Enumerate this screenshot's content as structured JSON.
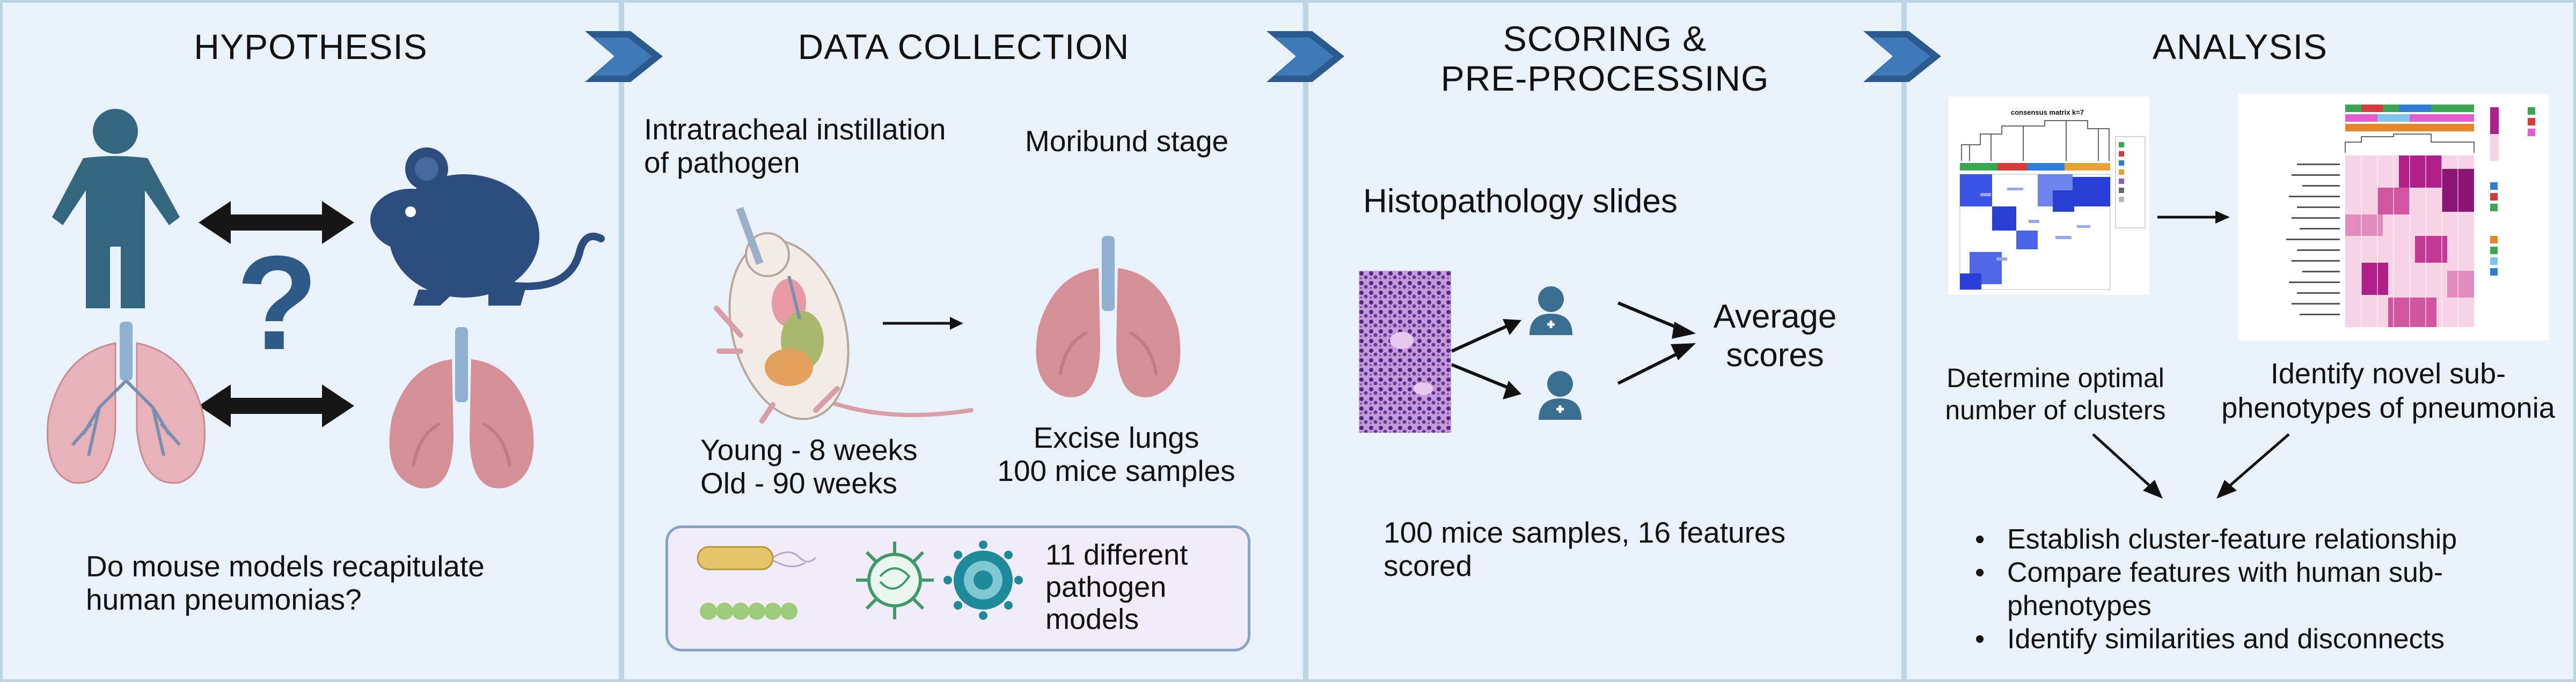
{
  "hypothesis": {
    "title": "HYPOTHESIS",
    "question_mark": "?",
    "question_line1": "Do mouse models recapitulate",
    "question_line2": "human pneumonias?"
  },
  "data_collection": {
    "title": "DATA COLLECTION",
    "instillation_line1": "Intratracheal instillation",
    "instillation_line2": "of pathogen",
    "moribund": "Moribund stage",
    "age_young": "Young - 8 weeks",
    "age_old": "Old - 90 weeks",
    "excise": "Excise lungs",
    "samples": "100 mice samples",
    "pathogen_line1": "11 different",
    "pathogen_line2": "pathogen",
    "pathogen_line3": "models"
  },
  "scoring": {
    "title_line1": "SCORING &",
    "title_line2": "PRE-PROCESSING",
    "slides": "Histopathology slides",
    "average_line1": "Average",
    "average_line2": "scores",
    "summary_line1": "100 mice samples, 16 features",
    "summary_line2": "scored"
  },
  "analysis": {
    "title": "ANALYSIS",
    "consensus_title": "consensus matrix k=7",
    "clusters_line1": "Determine optimal",
    "clusters_line2": "number of clusters",
    "subpheno_line1": "Identify novel sub-",
    "subpheno_line2": "phenotypes of pneumonia",
    "bullets": [
      "Establish cluster-feature relationship",
      "Compare features with human sub-",
      "phenotypes",
      "Identify similarities and disconnects"
    ]
  },
  "colors": {
    "panel_bg": "#e9f1fb",
    "panel_border": "#bcd5e4",
    "chevron": "#2a5a8e",
    "human": "#33677f",
    "mouse": "#2d4d7e",
    "lung": "#d58f96",
    "trachea": "#8fb0d0",
    "heatmap_blue": "#2a3fd6",
    "heatmap_magenta": "#b0208a"
  },
  "icons": [
    "human-icon",
    "mouse-icon",
    "lungs-icon",
    "doctor-icon",
    "bacteria-icon",
    "virus-icon"
  ]
}
